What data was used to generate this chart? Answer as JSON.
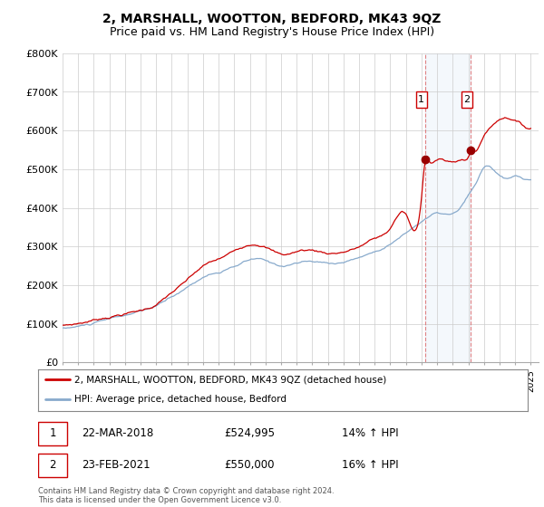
{
  "title": "2, MARSHALL, WOOTTON, BEDFORD, MK43 9QZ",
  "subtitle": "Price paid vs. HM Land Registry's House Price Index (HPI)",
  "ylim": [
    0,
    800000
  ],
  "yticks": [
    0,
    100000,
    200000,
    300000,
    400000,
    500000,
    600000,
    700000,
    800000
  ],
  "ytick_labels": [
    "£0",
    "£100K",
    "£200K",
    "£300K",
    "£400K",
    "£500K",
    "£600K",
    "£700K",
    "£800K"
  ],
  "background_color": "#ffffff",
  "plot_bg": "#ffffff",
  "grid_color": "#cccccc",
  "line1_color": "#cc0000",
  "line2_color": "#88aacc",
  "sale1_x": 2018.22,
  "sale1_y": 524995,
  "sale2_x": 2021.14,
  "sale2_y": 550000,
  "legend_line1": "2, MARSHALL, WOOTTON, BEDFORD, MK43 9QZ (detached house)",
  "legend_line2": "HPI: Average price, detached house, Bedford",
  "ann1_date": "22-MAR-2018",
  "ann1_price": "£524,995",
  "ann1_hpi": "14% ↑ HPI",
  "ann2_date": "23-FEB-2021",
  "ann2_price": "£550,000",
  "ann2_hpi": "16% ↑ HPI",
  "footer": "Contains HM Land Registry data © Crown copyright and database right 2024.\nThis data is licensed under the Open Government Licence v3.0.",
  "title_fontsize": 10,
  "subtitle_fontsize": 9,
  "xmin": 1995.0,
  "xmax": 2025.5
}
